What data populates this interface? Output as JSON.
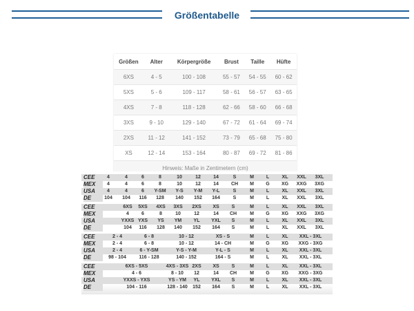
{
  "title": "Größentabelle",
  "size_table": {
    "headers": [
      "Größen",
      "Alter",
      "Körpergröße",
      "Brust",
      "Taille",
      "Hüfte"
    ],
    "rows": [
      [
        "6XS",
        "4 - 5",
        "100 - 108",
        "55 - 57",
        "54 - 55",
        "60 - 62"
      ],
      [
        "5XS",
        "5 - 6",
        "109 - 117",
        "58 - 61",
        "56 - 57",
        "63 - 65"
      ],
      [
        "4XS",
        "7 - 8",
        "118 - 128",
        "62 - 66",
        "58 - 60",
        "66 - 68"
      ],
      [
        "3XS",
        "9 - 10",
        "129 - 140",
        "67 - 72",
        "61 - 64",
        "69 - 74"
      ],
      [
        "2XS",
        "11 - 12",
        "141 - 152",
        "73 - 79",
        "65 - 68",
        "75 - 80"
      ],
      [
        "XS",
        "12 - 14",
        "153 - 164",
        "80 - 87",
        "69 - 72",
        "81 - 86"
      ]
    ],
    "note": "Hinweis: Maße in Zentimetern (cm)"
  },
  "conversion_blocks": [
    {
      "rows": [
        {
          "label": "CEE",
          "cells": [
            "4",
            "4",
            "6",
            "8",
            "10",
            "12",
            "14",
            "S",
            "M",
            "L",
            "XL",
            "XXL",
            "3XL"
          ]
        },
        {
          "label": "MEX",
          "cells": [
            "4",
            "4",
            "6",
            "8",
            "10",
            "12",
            "14",
            "CH",
            "M",
            "G",
            "XG",
            "XXG",
            "3XG"
          ]
        },
        {
          "label": "USA",
          "cells": [
            "4",
            "4",
            "6",
            "Y-SM",
            "Y-S",
            "Y-M",
            "Y-L",
            "S",
            "M",
            "L",
            "XL",
            "XXL",
            "3XL"
          ]
        },
        {
          "label": "DE",
          "cells": [
            "104",
            "104",
            "116",
            "128",
            "140",
            "152",
            "164",
            "S",
            "M",
            "L",
            "XL",
            "XXL",
            "3XL"
          ]
        }
      ]
    },
    {
      "rows": [
        {
          "label": "CEE",
          "cells": [
            "6XS",
            "5XS",
            "4XS",
            "3XS",
            "2XS",
            "XS",
            "S",
            "M",
            "L",
            "XL",
            "XXL",
            "3XL"
          ]
        },
        {
          "label": "MEX",
          "cells": [
            "4",
            "6",
            "8",
            "10",
            "12",
            "14",
            "CH",
            "M",
            "G",
            "XG",
            "XXG",
            "3XG"
          ]
        },
        {
          "label": "USA",
          "cells": [
            "YXXS",
            "YXS",
            "YS",
            "YM",
            "YL",
            "YXL",
            "S",
            "M",
            "L",
            "XL",
            "XXL",
            "3XL"
          ]
        },
        {
          "label": "DE",
          "cells": [
            "104",
            "116",
            "128",
            "140",
            "152",
            "164",
            "S",
            "M",
            "L",
            "XL",
            "XXL",
            "3XL"
          ]
        }
      ]
    },
    {
      "rows": [
        {
          "label": "CEE",
          "cells": [
            "2 - 4",
            "6 - 8",
            "10 - 12",
            "XS - S",
            "M",
            "L",
            "XL",
            "XXL - 3XL"
          ]
        },
        {
          "label": "MEX",
          "cells": [
            "2 - 4",
            "6 - 8",
            "10 - 12",
            "14 - CH",
            "M",
            "G",
            "XG",
            "XXG - 3XG"
          ]
        },
        {
          "label": "USA",
          "cells": [
            "2 - 4",
            "6 - Y-SM",
            "Y-S - Y-M",
            "Y-L - S",
            "M",
            "L",
            "XL",
            "XXL - 3XL"
          ]
        },
        {
          "label": "DE",
          "cells": [
            "98 - 104",
            "116 - 128",
            "140 - 152",
            "164 - S",
            "M",
            "L",
            "XL",
            "XXL - 3XL"
          ]
        }
      ]
    },
    {
      "rows": [
        {
          "label": "CEE",
          "cells": [
            "6XS - 5XS",
            "4XS - 3XS",
            "2XS",
            "XS",
            "S",
            "M",
            "L",
            "XL",
            "XXL - 3XL"
          ]
        },
        {
          "label": "MEX",
          "cells": [
            "4 - 6",
            "8 - 10",
            "12",
            "14",
            "CH",
            "M",
            "G",
            "XG",
            "XXG - 3XG"
          ]
        },
        {
          "label": "USA",
          "cells": [
            "YXXS - YXS",
            "YS - YM",
            "YL",
            "YXL",
            "S",
            "M",
            "L",
            "XL",
            "XXL - 3XL"
          ]
        },
        {
          "label": "DE",
          "cells": [
            "104 - 116",
            "128 - 140",
            "152",
            "164",
            "S",
            "M",
            "L",
            "XL",
            "XXL - 3XL"
          ]
        }
      ]
    }
  ],
  "colors": {
    "accent": "#1f5a8c"
  }
}
